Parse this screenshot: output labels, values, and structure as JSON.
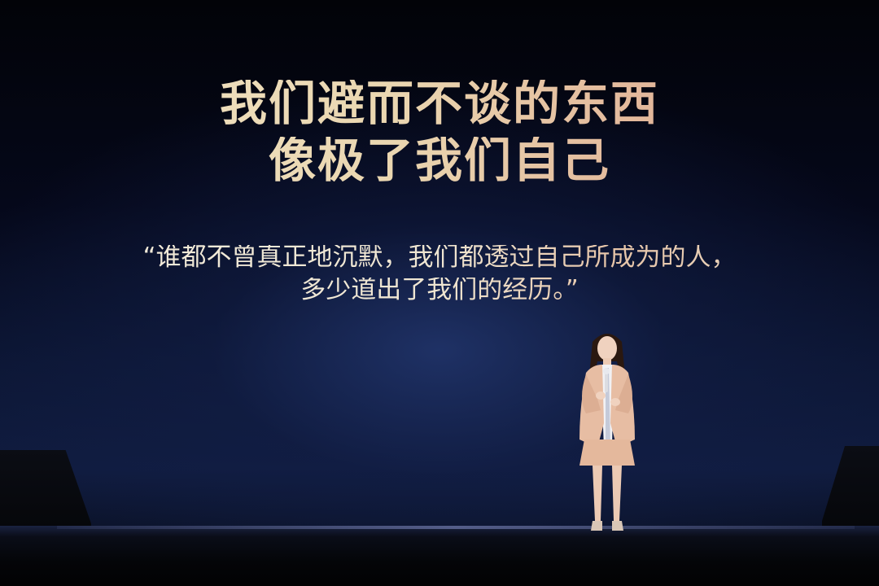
{
  "slide": {
    "headline_line1": "我们避而不谈的东西",
    "headline_line2": "像极了我们自己",
    "quote_line1": "“谁都不曾真正地沉默，我们都透过自己所成为的人，",
    "quote_line2": "多少道出了我们的经历。”"
  },
  "colors": {
    "headline": "#ead6b0",
    "quote": "#efe6d2",
    "background": "#05081a",
    "stage_glow": "#1c2e64"
  },
  "scene": {
    "presenter_outfit": "beige blazer and skirt"
  }
}
